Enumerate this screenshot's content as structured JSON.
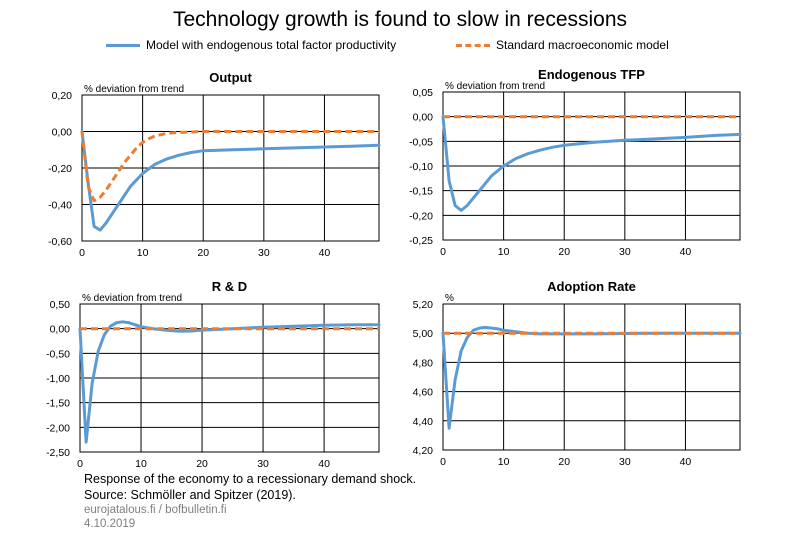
{
  "title": "Technology growth is found to slow in recessions",
  "colors": {
    "model": "#5B9BD5",
    "standard": "#ED7D31",
    "grid": "#000000"
  },
  "legend": {
    "model": "Model with endogenous total factor productivity",
    "standard": "Standard macroeconomic model"
  },
  "footer": {
    "line1": "Response of the economy to a recessionary demand shock.",
    "line2": "Source: Schmöller and Spitzer (2019).",
    "line3": "eurojatalous.fi / bofbulletin.fi",
    "line4": "4.10.2019"
  },
  "chart_data": [
    {
      "type": "line",
      "title": "Output",
      "unit_label": "% deviation from trend",
      "ylim": [
        -0.6,
        0.2
      ],
      "ytick_step": 0.2,
      "ytick_labels": [
        "0,20",
        "0,00",
        "-0,20",
        "-0,40",
        "-0,60"
      ],
      "xlim": [
        0,
        49
      ],
      "xtick_labels": [
        "0",
        "10",
        "20",
        "30",
        "40"
      ],
      "grid": true,
      "series": [
        {
          "name": "Model with endogenous total factor productivity",
          "style": "solid",
          "x": [
            0,
            1,
            2,
            3,
            4,
            5,
            6,
            7,
            8,
            10,
            12,
            14,
            16,
            18,
            20,
            25,
            30,
            35,
            40,
            45,
            49
          ],
          "y": [
            0,
            -0.28,
            -0.52,
            -0.54,
            -0.5,
            -0.45,
            -0.4,
            -0.35,
            -0.3,
            -0.23,
            -0.18,
            -0.15,
            -0.13,
            -0.115,
            -0.105,
            -0.1,
            -0.095,
            -0.09,
            -0.085,
            -0.08,
            -0.075
          ]
        },
        {
          "name": "Standard macroeconomic model",
          "style": "dashed",
          "x": [
            0,
            1,
            2,
            3,
            4,
            5,
            6,
            7,
            8,
            9,
            10,
            11,
            12,
            14,
            16,
            20,
            25,
            30,
            40,
            49
          ],
          "y": [
            0,
            -0.3,
            -0.38,
            -0.36,
            -0.32,
            -0.27,
            -0.22,
            -0.17,
            -0.13,
            -0.09,
            -0.06,
            -0.04,
            -0.025,
            -0.01,
            -0.005,
            0,
            0,
            0,
            0,
            0
          ]
        }
      ]
    },
    {
      "type": "line",
      "title": "Endogenous TFP",
      "unit_label": "% deviation from trend",
      "ylim": [
        -0.25,
        0.05
      ],
      "ytick_step": 0.05,
      "ytick_labels": [
        "0,05",
        "0,00",
        "-0,05",
        "-0,10",
        "-0,15",
        "-0,20",
        "-0,25"
      ],
      "xlim": [
        0,
        49
      ],
      "xtick_labels": [
        "0",
        "10",
        "20",
        "30",
        "40"
      ],
      "grid": true,
      "series": [
        {
          "name": "Model with endogenous total factor productivity",
          "style": "solid",
          "x": [
            0,
            1,
            2,
            3,
            4,
            5,
            6,
            7,
            8,
            10,
            12,
            14,
            16,
            18,
            20,
            25,
            30,
            35,
            40,
            45,
            49
          ],
          "y": [
            0,
            -0.13,
            -0.18,
            -0.19,
            -0.18,
            -0.165,
            -0.15,
            -0.135,
            -0.12,
            -0.1,
            -0.085,
            -0.075,
            -0.068,
            -0.062,
            -0.058,
            -0.052,
            -0.048,
            -0.045,
            -0.042,
            -0.038,
            -0.036
          ]
        },
        {
          "name": "Standard macroeconomic model",
          "style": "dashed",
          "x": [
            0,
            49
          ],
          "y": [
            0,
            0
          ]
        }
      ]
    },
    {
      "type": "line",
      "title": "R & D",
      "unit_label": "% deviation from trend",
      "ylim": [
        -2.5,
        0.5
      ],
      "ytick_step": 0.5,
      "ytick_labels": [
        "0,50",
        "0,00",
        "-0,50",
        "-1,00",
        "-1,50",
        "-2,00",
        "-2,50"
      ],
      "xlim": [
        0,
        49
      ],
      "xtick_labels": [
        "0",
        "10",
        "20",
        "30",
        "40"
      ],
      "grid": true,
      "series": [
        {
          "name": "Model with endogenous total factor productivity",
          "style": "solid",
          "x": [
            0,
            1,
            2,
            3,
            4,
            5,
            6,
            7,
            8,
            9,
            10,
            12,
            14,
            16,
            18,
            20,
            25,
            30,
            35,
            40,
            45,
            49
          ],
          "y": [
            0,
            -2.3,
            -1.1,
            -0.45,
            -0.12,
            0.05,
            0.12,
            0.14,
            0.12,
            0.08,
            0.04,
            0.0,
            -0.03,
            -0.05,
            -0.05,
            -0.03,
            0.0,
            0.03,
            0.05,
            0.07,
            0.08,
            0.08
          ]
        },
        {
          "name": "Standard macroeconomic model",
          "style": "dashed",
          "x": [
            0,
            49
          ],
          "y": [
            0,
            0
          ]
        }
      ]
    },
    {
      "type": "line",
      "title": "Adoption Rate",
      "unit_label": "%",
      "ylim": [
        4.2,
        5.2
      ],
      "ytick_step": 0.2,
      "ytick_labels": [
        "5,20",
        "5,00",
        "4,80",
        "4,60",
        "4,40",
        "4,20"
      ],
      "xlim": [
        0,
        49
      ],
      "xtick_labels": [
        "0",
        "10",
        "20",
        "30",
        "40"
      ],
      "grid": true,
      "series": [
        {
          "name": "Model with endogenous total factor productivity",
          "style": "solid",
          "x": [
            0,
            1,
            2,
            3,
            4,
            5,
            6,
            7,
            8,
            9,
            10,
            12,
            14,
            16,
            20,
            25,
            30,
            35,
            40,
            45,
            49
          ],
          "y": [
            5.0,
            4.35,
            4.68,
            4.88,
            4.97,
            5.02,
            5.035,
            5.04,
            5.035,
            5.03,
            5.02,
            5.01,
            5.0,
            4.995,
            4.995,
            4.995,
            4.998,
            5.0,
            5.0,
            5.0,
            5.0
          ]
        },
        {
          "name": "Standard macroeconomic model",
          "style": "dashed",
          "x": [
            0,
            49
          ],
          "y": [
            5.0,
            5.0
          ]
        }
      ]
    }
  ]
}
